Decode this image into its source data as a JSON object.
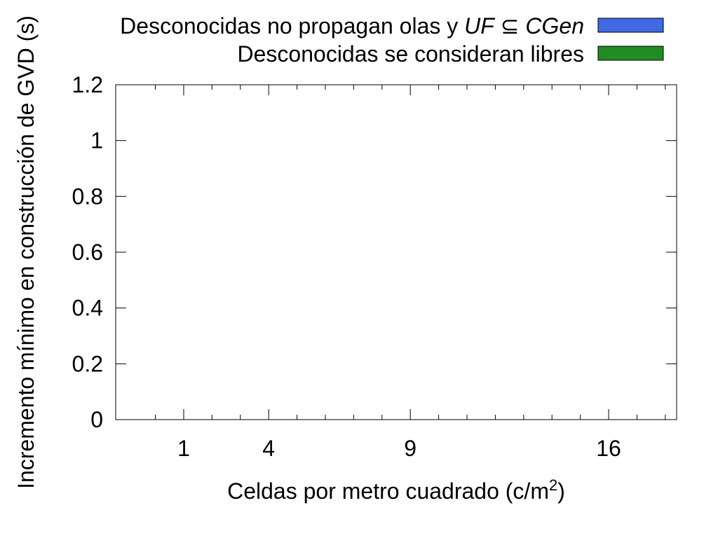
{
  "chart_data": {
    "type": "bar",
    "categories": [
      "1",
      "4",
      "9",
      "16"
    ],
    "x_ticks": [
      1,
      4,
      9,
      16
    ],
    "x_minor_ticks": [
      0,
      2,
      3,
      5,
      6,
      7,
      8,
      10,
      11,
      12,
      13,
      14,
      15,
      17,
      18
    ],
    "xlim": [
      -1.4,
      18.4
    ],
    "ylim": [
      0,
      1.2
    ],
    "y_ticks": [
      0,
      0.2,
      0.4,
      0.6,
      0.8,
      1,
      1.2
    ],
    "y_tick_labels": [
      "0",
      "0.2",
      "0.4",
      "0.6",
      "0.8",
      "1",
      "1.2"
    ],
    "xlabel": {
      "text": "Celdas por metro cuadrado (c/m",
      "sup": "2",
      "suffix": ")"
    },
    "ylabel": "Incremento mínimo en construcción de GVD (s)",
    "grid": false,
    "legend_position": "top-right, outside",
    "series": [
      {
        "name_parts": [
          "Desconocidas no propagan olas y ",
          "UF",
          " ⊆ ",
          "CGen"
        ],
        "color": "#4169e1",
        "values": [
          0,
          0,
          0,
          0
        ]
      },
      {
        "name": "Desconocidas se consideran libres",
        "color": "#228b22",
        "values": [
          0,
          0,
          0,
          0
        ]
      }
    ]
  }
}
